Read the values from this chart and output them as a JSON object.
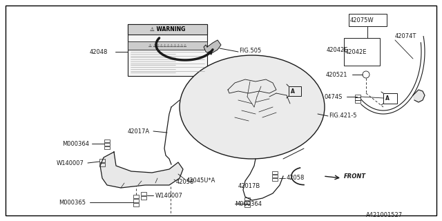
{
  "background_color": "#ffffff",
  "border_color": "#000000",
  "fig_width": 6.4,
  "fig_height": 3.2,
  "dpi": 100,
  "diagram_id": "A421001527",
  "line_color": "#1a1a1a",
  "text_color": "#1a1a1a",
  "font_size": 6.0,
  "small_font_size": 5.5,
  "border": [
    0.012,
    0.025,
    0.976,
    0.95
  ]
}
